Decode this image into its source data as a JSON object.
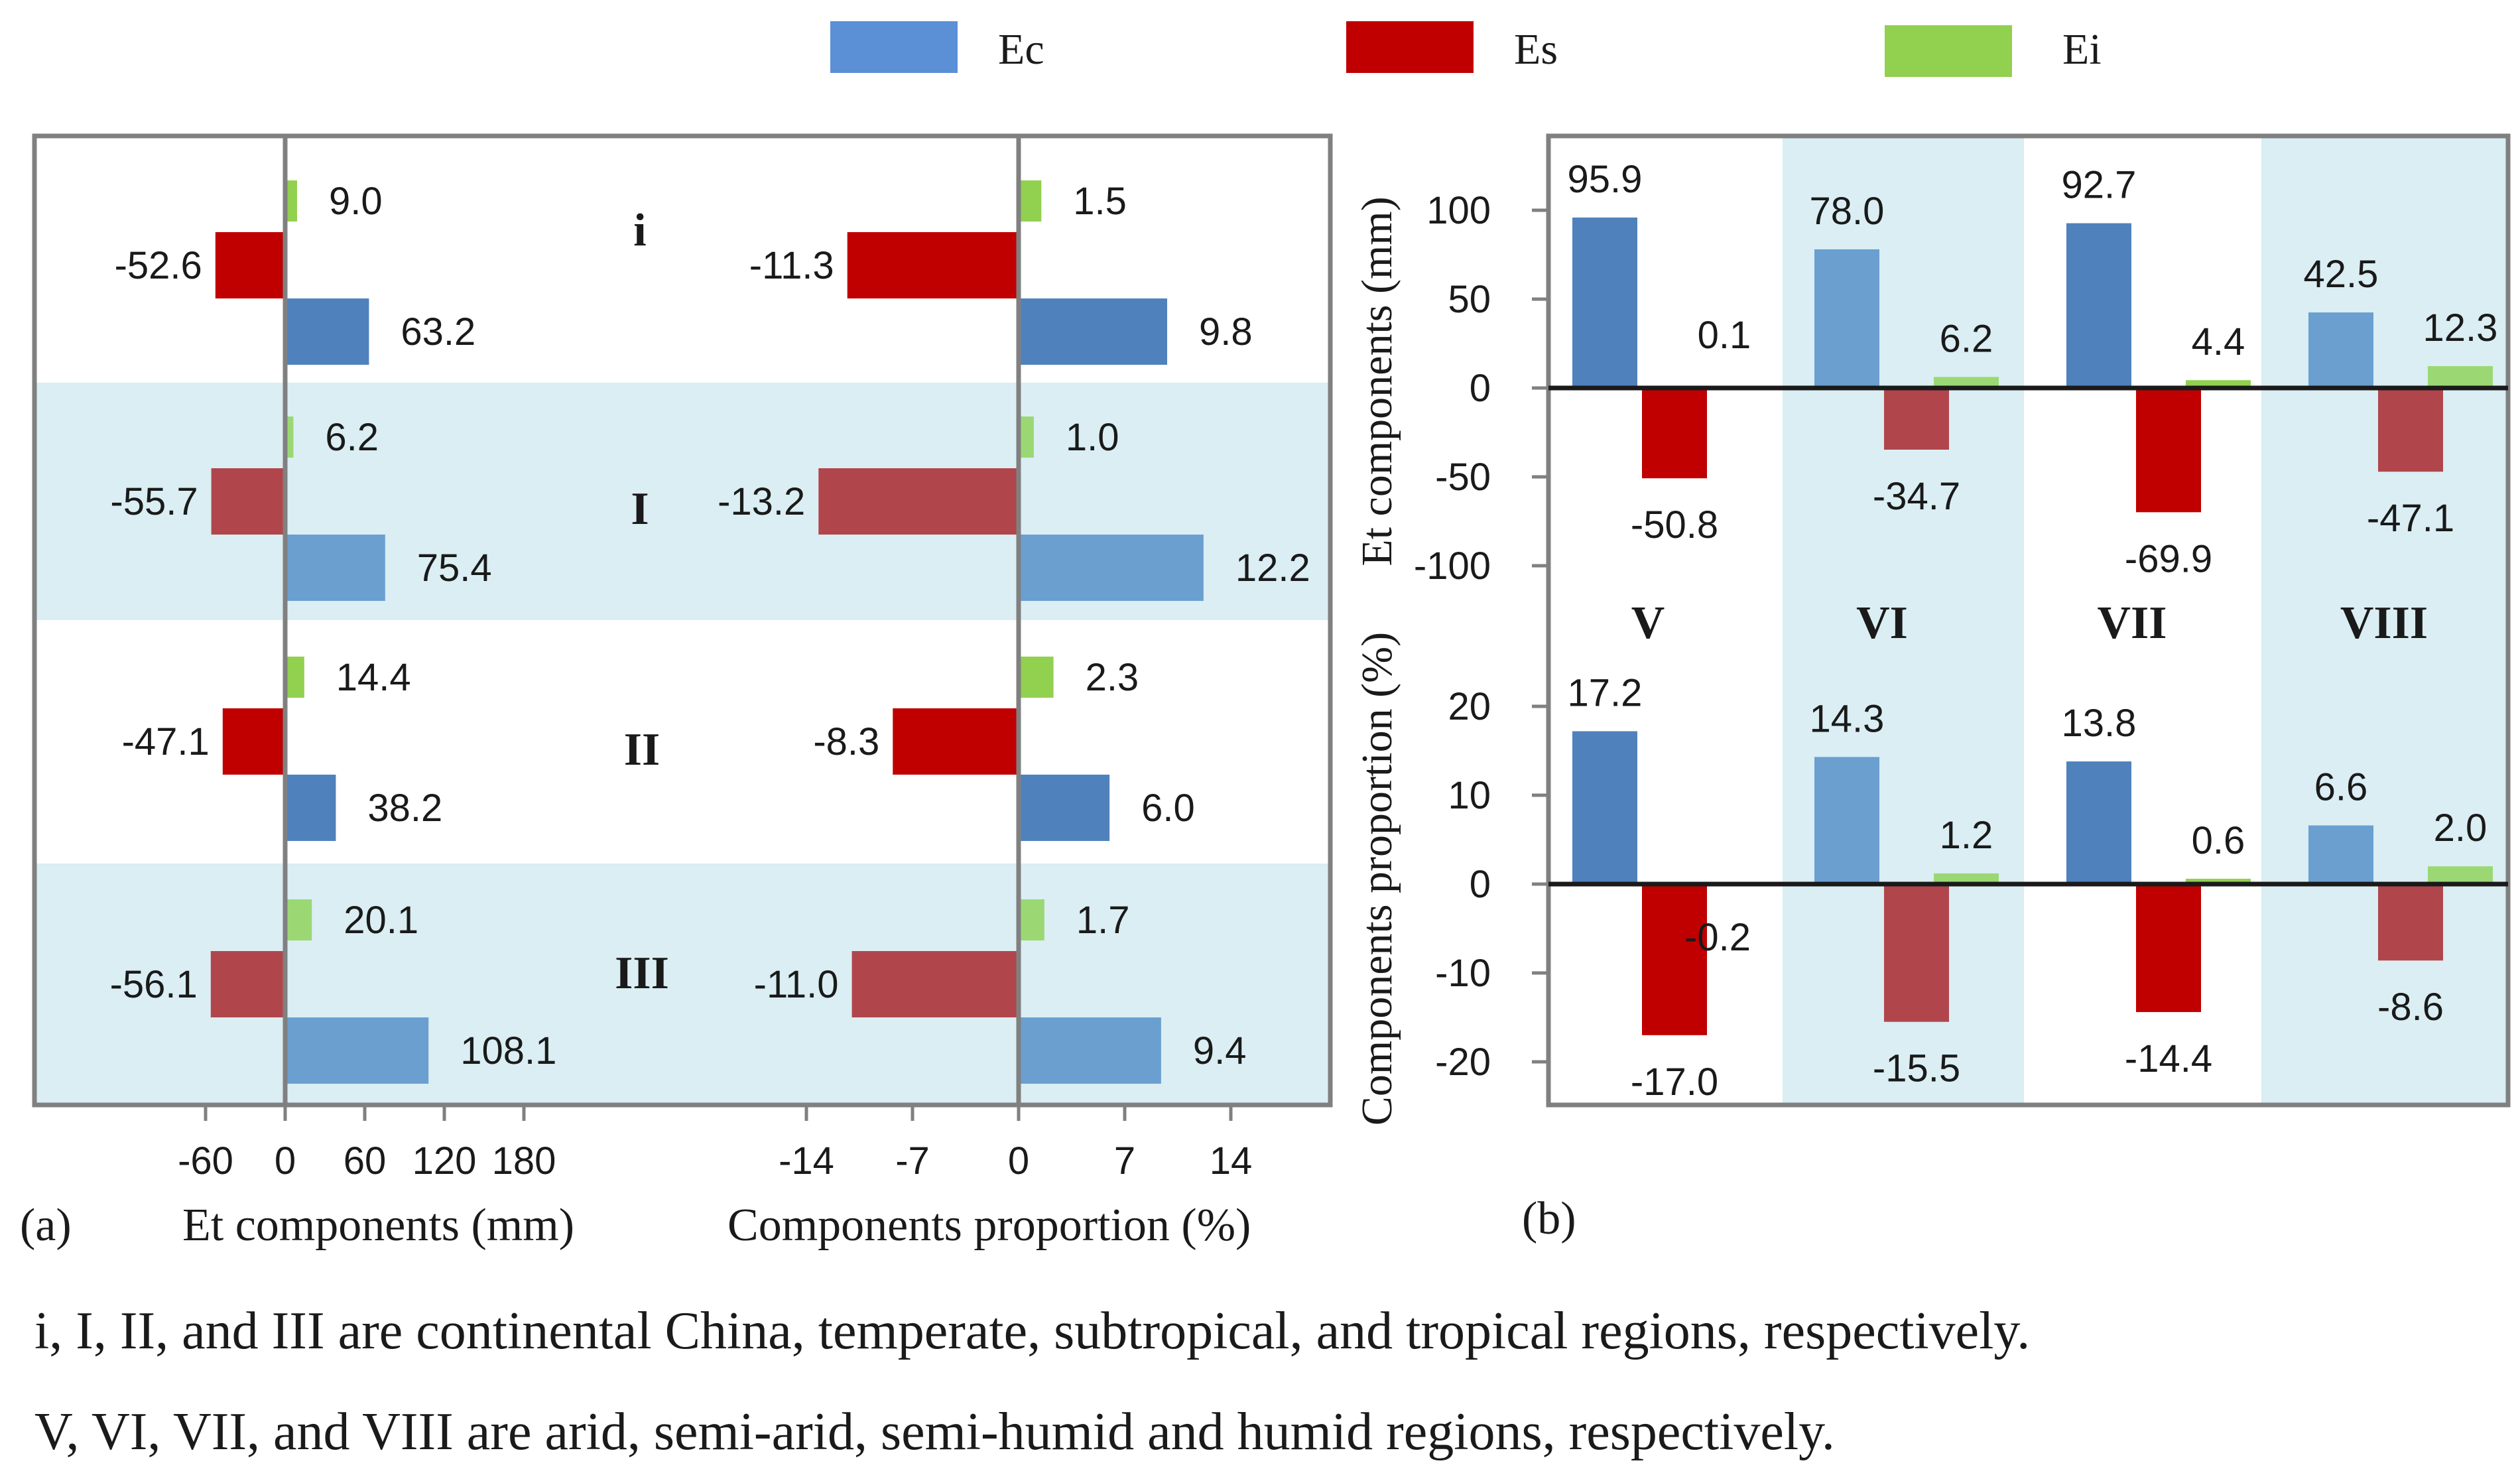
{
  "colors": {
    "ec_dark": "#4f81bd",
    "ec_light": "#6a9fd0",
    "es_dark": "#c00000",
    "es_light": "#b0464c",
    "ei_dark": "#92d050",
    "ei_light": "#9bd874",
    "band": "#daeef3",
    "frame": "#808080",
    "text": "#1a1a1a"
  },
  "legend": [
    {
      "key": "Ec",
      "label": "Ec",
      "color": "#5b8fd6"
    },
    {
      "key": "Es",
      "label": "Es",
      "color": "#c00000"
    },
    {
      "key": "Ei",
      "label": "Ei",
      "color": "#92d050"
    }
  ],
  "panel_a": {
    "label": "(a)",
    "left_xlabel": "Et components (mm)",
    "right_xlabel": "Components proportion (%)",
    "left_ticks": [
      "-60",
      "0",
      "60",
      "120",
      "180"
    ],
    "right_ticks": [
      "-14",
      "-7",
      "0",
      "7",
      "14"
    ],
    "regions": [
      "i",
      "I",
      "II",
      "III"
    ]
  },
  "panel_b": {
    "label": "(b)",
    "top_ylabel": "Et components (mm)",
    "bottom_ylabel": "Components proportion (%)",
    "top_ticks": [
      "100",
      "50",
      "0",
      "-50",
      "-100"
    ],
    "bottom_ticks": [
      "20",
      "10",
      "0",
      "-10",
      "-20"
    ],
    "regions": [
      "V",
      "VI",
      "VII",
      "VIII"
    ]
  },
  "notes": [
    "i, I, II, and III are continental China, temperate, subtropical, and tropical regions, respectively.",
    "V, VI, VII, and VIII are arid, semi-arid, semi-humid and humid regions, respectively."
  ],
  "chart_data": [
    {
      "type": "bar",
      "orientation": "horizontal",
      "categories": [
        "i",
        "I",
        "II",
        "III"
      ],
      "xlabel": "Et components (mm)",
      "xlim": [
        -90,
        180
      ],
      "series": [
        {
          "name": "Ec",
          "values": [
            63.2,
            75.4,
            38.2,
            108.1
          ],
          "labels": [
            "63.2",
            "75.4",
            "38.2",
            "108.1"
          ]
        },
        {
          "name": "Es",
          "values": [
            -52.6,
            -55.7,
            -47.1,
            -56.1
          ],
          "labels": [
            "-52.6",
            "-55.7",
            "-47.1",
            "-56.1"
          ]
        },
        {
          "name": "Ei",
          "values": [
            9.0,
            6.2,
            14.4,
            20.1
          ],
          "labels": [
            "9.0",
            "6.2",
            "14.4",
            "20.1"
          ]
        }
      ]
    },
    {
      "type": "bar",
      "orientation": "horizontal",
      "categories": [
        "i",
        "I",
        "II",
        "III"
      ],
      "xlabel": "Components proportion (%)",
      "xlim": [
        -19,
        16
      ],
      "series": [
        {
          "name": "Ec",
          "values": [
            9.8,
            12.2,
            6.0,
            9.4
          ],
          "labels": [
            "9.8",
            "12.2",
            "6.0",
            "9.4"
          ]
        },
        {
          "name": "Es",
          "values": [
            -11.3,
            -13.2,
            -8.3,
            -11.0
          ],
          "labels": [
            "-11.3",
            "-13.2",
            "-8.3",
            "-11.0"
          ]
        },
        {
          "name": "Ei",
          "values": [
            1.5,
            1.0,
            2.3,
            1.7
          ],
          "labels": [
            "1.5",
            "1.0",
            "2.3",
            "1.7"
          ]
        }
      ]
    },
    {
      "type": "bar",
      "categories": [
        "V",
        "VI",
        "VII",
        "VIII"
      ],
      "ylabel": "Et components (mm)",
      "ylim": [
        -120,
        130
      ],
      "series": [
        {
          "name": "Ec",
          "values": [
            95.9,
            78.0,
            92.7,
            42.5
          ],
          "labels": [
            "95.9",
            "78.0",
            "92.7",
            "42.5"
          ]
        },
        {
          "name": "Es",
          "values": [
            -50.8,
            -34.7,
            -69.9,
            -47.1
          ],
          "labels": [
            "-50.8",
            "-34.7",
            "-69.9",
            "-47.1"
          ]
        },
        {
          "name": "Ei",
          "values": [
            0.1,
            6.2,
            4.4,
            12.3
          ],
          "labels": [
            "0.1",
            "6.2",
            "4.4",
            "12.3"
          ]
        }
      ]
    },
    {
      "type": "bar",
      "categories": [
        "V",
        "VI",
        "VII",
        "VIII"
      ],
      "ylabel": "Components proportion (%)",
      "ylim": [
        -23,
        25
      ],
      "series": [
        {
          "name": "Ec",
          "values": [
            17.2,
            14.3,
            13.8,
            6.6
          ],
          "labels": [
            "17.2",
            "14.3",
            "13.8",
            "6.6"
          ]
        },
        {
          "name": "Es",
          "values": [
            -17.0,
            -15.5,
            -14.4,
            -8.6
          ],
          "labels": [
            "-17.0",
            "-15.5",
            "-14.4",
            "-8.6"
          ]
        },
        {
          "name": "Ei",
          "values": [
            -0.2,
            1.2,
            0.6,
            2.0
          ],
          "labels": [
            "-0.2",
            "1.2",
            "0.6",
            "2.0"
          ]
        }
      ]
    }
  ]
}
